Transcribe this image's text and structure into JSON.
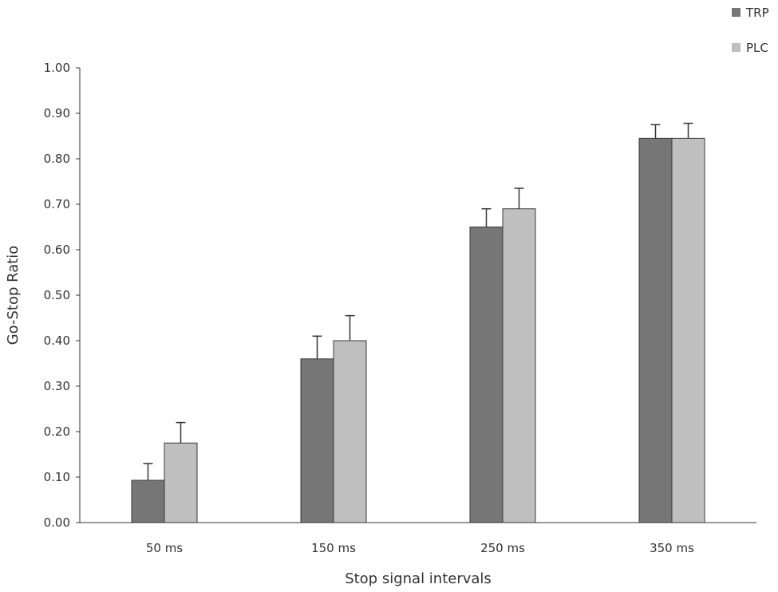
{
  "chart_data": {
    "type": "bar",
    "title": "",
    "xlabel": "Stop signal intervals",
    "ylabel": "Go-Stop Ratio",
    "ylim": [
      0,
      1
    ],
    "yticks": [
      "0.00",
      "0.10",
      "0.20",
      "0.30",
      "0.40",
      "0.50",
      "0.60",
      "0.70",
      "0.80",
      "0.90",
      "1.00"
    ],
    "categories": [
      "50 ms",
      "150 ms",
      "250 ms",
      "350 ms"
    ],
    "series": [
      {
        "name": "TRP",
        "color": "#767676",
        "values": [
          0.093,
          0.36,
          0.65,
          0.845
        ],
        "error": [
          0.037,
          0.05,
          0.04,
          0.03
        ]
      },
      {
        "name": "PLC",
        "color": "#bfbfbf",
        "values": [
          0.175,
          0.4,
          0.69,
          0.845
        ],
        "error": [
          0.045,
          0.055,
          0.045,
          0.033
        ]
      }
    ],
    "grid": false,
    "legend_position": "top-right"
  }
}
